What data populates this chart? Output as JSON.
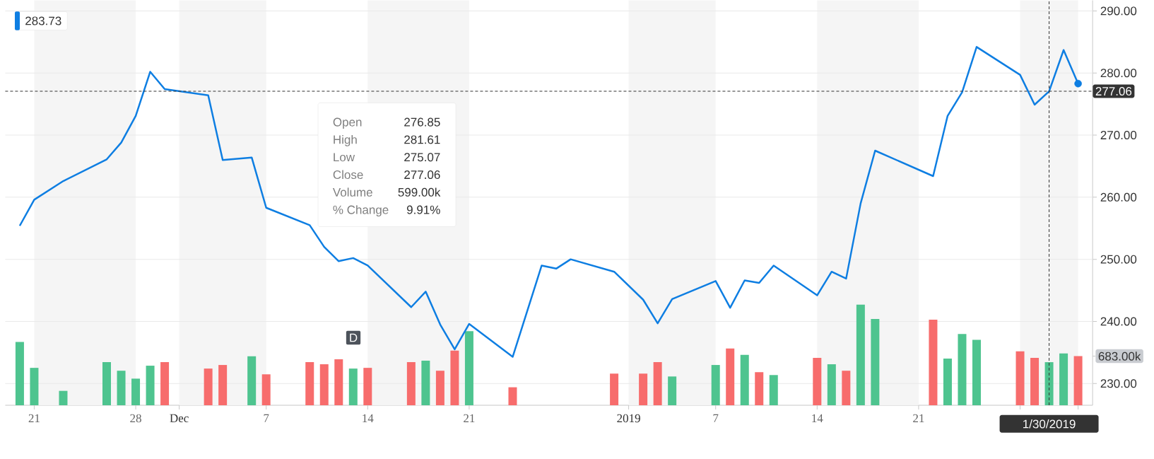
{
  "chart_data": {
    "type": "line",
    "x": [
      "2018-11-20",
      "2018-11-21",
      "2018-11-23",
      "2018-11-26",
      "2018-11-27",
      "2018-11-28",
      "2018-11-29",
      "2018-11-30",
      "2018-12-03",
      "2018-12-04",
      "2018-12-06",
      "2018-12-07",
      "2018-12-10",
      "2018-12-11",
      "2018-12-12",
      "2018-12-13",
      "2018-12-14",
      "2018-12-17",
      "2018-12-18",
      "2018-12-19",
      "2018-12-20",
      "2018-12-21",
      "2018-12-24",
      "2018-12-26",
      "2018-12-27",
      "2018-12-28",
      "2018-12-31",
      "2019-01-02",
      "2019-01-03",
      "2019-01-04",
      "2019-01-07",
      "2019-01-08",
      "2019-01-09",
      "2019-01-10",
      "2019-01-11",
      "2019-01-14",
      "2019-01-15",
      "2019-01-16",
      "2019-01-17",
      "2019-01-18",
      "2019-01-22",
      "2019-01-23",
      "2019-01-24",
      "2019-01-25",
      "2019-01-28",
      "2019-01-29",
      "2019-01-30",
      "2019-01-31",
      "2019-02-01"
    ],
    "xlim": [
      "2018-11-19",
      "2019-02-02"
    ],
    "ylim": [
      226.5,
      291.7
    ],
    "xticks": [
      {
        "value": "2018-11-21",
        "label": "21"
      },
      {
        "value": "2018-11-28",
        "label": "28"
      },
      {
        "value": "2018-12-01",
        "label": "Dec"
      },
      {
        "value": "2018-12-07",
        "label": "7"
      },
      {
        "value": "2018-12-14",
        "label": "14"
      },
      {
        "value": "2018-12-21",
        "label": "21"
      },
      {
        "value": "2019-01-01",
        "label": "2019"
      },
      {
        "value": "2019-01-07",
        "label": "7"
      },
      {
        "value": "2019-01-14",
        "label": "14"
      },
      {
        "value": "2019-01-21",
        "label": "21"
      },
      {
        "value": "2019-01-28",
        "label": null
      },
      {
        "value": "2019-02-01",
        "label": null
      }
    ],
    "yticks": [
      {
        "value": 230,
        "label": "230.00"
      },
      {
        "value": 240,
        "label": "240.00"
      },
      {
        "value": 250,
        "label": "250.00"
      },
      {
        "value": 260,
        "label": "260.00"
      },
      {
        "value": 270,
        "label": "270.00"
      },
      {
        "value": 280,
        "label": "280.00"
      },
      {
        "value": 290,
        "label": "290.00"
      }
    ],
    "y2lim": [
      0,
      5630000
    ],
    "y2ticks": [
      {
        "value": 683000,
        "label": "683.00k"
      }
    ],
    "series": [
      {
        "color": "#0e7ee2",
        "values": [
          255.4,
          259.6,
          262.6,
          266.1,
          268.8,
          273.1,
          280.2,
          277.4,
          276.4,
          266.0,
          266.4,
          258.3,
          255.5,
          252.0,
          249.7,
          250.2,
          249.0,
          242.3,
          244.8,
          239.5,
          235.5,
          239.6,
          234.3,
          249.0,
          248.5,
          250.0,
          248.0,
          243.5,
          239.7,
          243.6,
          246.5,
          242.2,
          246.6,
          246.2,
          249.0,
          244.2,
          248.0,
          246.9,
          259.0,
          267.5,
          263.4,
          273.1,
          276.9,
          284.2,
          279.7,
          274.9,
          277.06,
          283.7,
          278.3
        ]
      },
      {
        "type": "bar",
        "axis": "y2",
        "values": [
          880000,
          520000,
          200000,
          600000,
          480000,
          370000,
          550000,
          600000,
          510000,
          560000,
          680000,
          430000,
          600000,
          570000,
          640000,
          510000,
          520000,
          600000,
          620000,
          480000,
          760000,
          1030000,
          250000,
          null,
          null,
          null,
          440000,
          440000,
          600000,
          400000,
          560000,
          790000,
          700000,
          460000,
          420000,
          660000,
          570000,
          480000,
          1400000,
          1200000,
          1190000,
          650000,
          990000,
          910000,
          750000,
          660000,
          599000,
          720000,
          683000
        ],
        "colors": [
          "#4ec48f",
          "#4ec48f",
          "#4ec48f",
          "#4ec48f",
          "#4ec48f",
          "#4ec48f",
          "#4ec48f",
          "#f76c6c",
          "#f76c6c",
          "#f76c6c",
          "#4ec48f",
          "#f76c6c",
          "#f76c6c",
          "#f76c6c",
          "#f76c6c",
          "#4ec48f",
          "#f76c6c",
          "#f76c6c",
          "#4ec48f",
          "#f76c6c",
          "#f76c6c",
          "#4ec48f",
          "#f76c6c",
          "#4ec48f",
          "#f76c6c",
          "#4ec48f",
          "#f76c6c",
          "#f76c6c",
          "#f76c6c",
          "#4ec48f",
          "#4ec48f",
          "#f76c6c",
          "#4ec48f",
          "#f76c6c",
          "#4ec48f",
          "#f76c6c",
          "#4ec48f",
          "#f76c6c",
          "#4ec48f",
          "#4ec48f",
          "#f76c6c",
          "#4ec48f",
          "#4ec48f",
          "#4ec48f",
          "#f76c6c",
          "#f76c6c",
          "#4ec48f",
          "#4ec48f",
          "#f76c6c"
        ]
      },
      {
        "type": "scatter",
        "x": [
          "2019-02-01"
        ],
        "values": [
          278.3
        ],
        "color": "#0e7ee2"
      }
    ],
    "grid": "y",
    "ref_lines": [
      {
        "axis": "y",
        "value": 277.06,
        "label": "277.06",
        "color": "#333333",
        "line_style": "dashed"
      },
      {
        "axis": "x",
        "value": "2019-01-30",
        "label": "1/30/2019",
        "color": "#333333",
        "line_style": "dashed"
      }
    ],
    "bands": [
      {
        "axis": "x",
        "from": "2018-11-21",
        "to": "2018-11-28",
        "color": "#f5f5f5"
      },
      {
        "axis": "x",
        "from": "2018-12-01",
        "to": "2018-12-07",
        "color": "#f5f5f5"
      },
      {
        "axis": "x",
        "from": "2018-12-14",
        "to": "2018-12-21",
        "color": "#f5f5f5"
      },
      {
        "axis": "x",
        "from": "2019-01-01",
        "to": "2019-01-07",
        "color": "#f5f5f5"
      },
      {
        "axis": "x",
        "from": "2019-01-14",
        "to": "2019-01-21",
        "color": "#f5f5f5"
      },
      {
        "axis": "x",
        "from": "2019-01-28",
        "to": "2019-02-01",
        "color": "#f5f5f5"
      }
    ],
    "annotations": [
      "283.73",
      "D",
      "Open",
      "276.85",
      "High",
      "281.61",
      "Low",
      "275.07",
      "Close",
      "277.06",
      "Volume",
      "599.00k",
      "% Change",
      "9.91%"
    ]
  }
}
